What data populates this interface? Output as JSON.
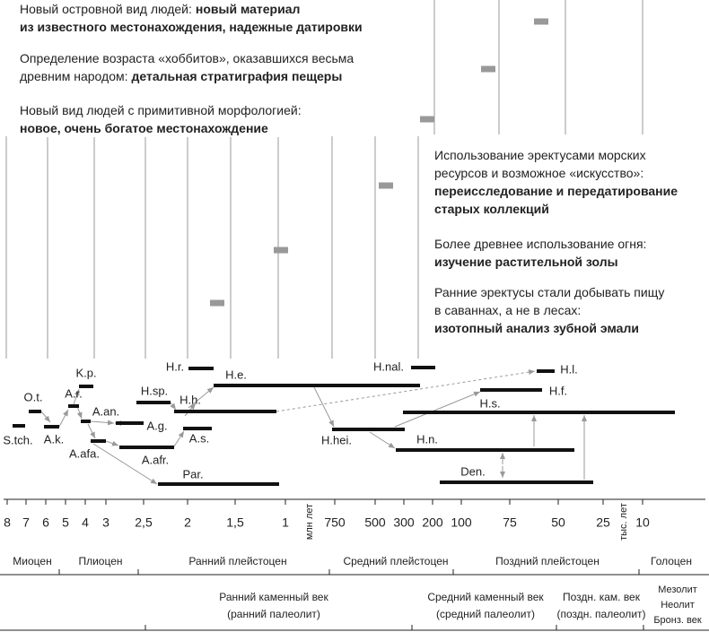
{
  "findings": [
    {
      "lines": [
        {
          "regular": "Новый островной вид людей:",
          "bold": "новый материал"
        },
        {
          "bold": "из известного местонахождения, надежные датировки"
        }
      ]
    },
    {
      "lines": [
        {
          "regular": "Определение возраста «хоббитов», оказавшихся весьма"
        },
        {
          "regular": "древним народом:",
          "bold": "детальная стратиграфия пещеры"
        }
      ]
    },
    {
      "lines": [
        {
          "regular": "Новый вид людей с примитивной морфологией:"
        },
        {
          "bold": "новое, очень богатое местонахождение"
        }
      ]
    },
    {
      "lines": [
        {
          "regular": "Использование эректусами морских"
        },
        {
          "regular": "ресурсов и возможное «искусство»:"
        },
        {
          "bold": "переисследование и передатирование"
        },
        {
          "bold": "старых коллекций"
        }
      ]
    },
    {
      "lines": [
        {
          "regular": "Более древнее использование огня:"
        },
        {
          "bold": "изучение растительной золы"
        }
      ]
    },
    {
      "lines": [
        {
          "regular": "Ранние эректусы стали добывать пищу"
        },
        {
          "regular": "в саваннах, а не в лесах:"
        },
        {
          "bold": "изотопный анализ зубной эмали"
        }
      ]
    }
  ],
  "species": [
    "S.tch.",
    "O.t.",
    "A.k.",
    "K.p.",
    "A.r.",
    "A.an.",
    "A.afa.",
    "H.sp.",
    "A.g.",
    "H.h.",
    "A.afr.",
    "A.s.",
    "Par.",
    "H.r.",
    "H.e.",
    "H.nal.",
    "H.l.",
    "H.f.",
    "H.s.",
    "H.hei.",
    "H.n.",
    "Den."
  ],
  "axis": {
    "ticks": [
      "8",
      "7",
      "6",
      "5",
      "4",
      "3",
      "2,5",
      "2",
      "1,5",
      "1",
      "750",
      "500",
      "300",
      "200",
      "100",
      "75",
      "50",
      "25",
      "10"
    ],
    "unit_million": "млн лет",
    "unit_thousand": "тыс. лет"
  },
  "epochs": [
    "Миоцен",
    "Плиоцен",
    "Ранний плейстоцен",
    "Средний плейстоцен",
    "Поздний плейстоцен",
    "Голоцен"
  ],
  "cultures": [
    {
      "lines": [
        "Ранний каменный век",
        "(ранний палеолит)"
      ]
    },
    {
      "lines": [
        "Средний каменный век",
        "(средний палеолит)"
      ]
    },
    {
      "lines": [
        "Поздн. кам. век",
        "(поздн. палеолит)"
      ]
    },
    {
      "lines": [
        "Мезолит",
        "Неолит",
        "Бронз. век"
      ]
    }
  ]
}
